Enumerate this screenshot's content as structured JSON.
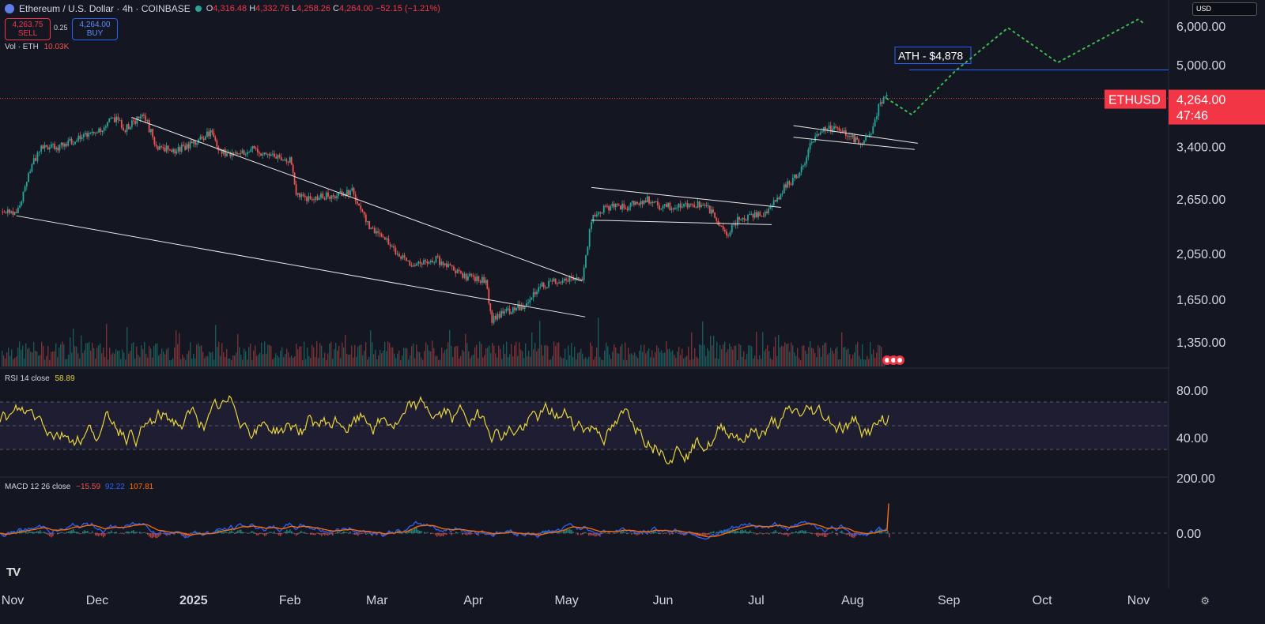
{
  "header": {
    "symbol": "Ethereum / U.S. Dollar · 4h · COINBASE",
    "open_label": "O",
    "open": "4,316.48",
    "high_label": "H",
    "high": "4,332.76",
    "low_label": "L",
    "low": "4,258.26",
    "close_label": "C",
    "close": "4,264.00",
    "change": "−52.15 (−1.21%)"
  },
  "trade": {
    "sell_price": "4,263.75",
    "sell_label": "SELL",
    "spread": "0.25",
    "buy_price": "4,264.00",
    "buy_label": "BUY"
  },
  "vol_label": "Vol · ETH",
  "vol_value": "10.03K",
  "rsi_label": "RSI 14 close",
  "rsi_value": "58.89",
  "macd_label": "MACD 12 26 close",
  "macd_values": [
    "−15.59",
    "92.22",
    "107.81"
  ],
  "currency": "USD",
  "ticker_tag": "ETHUSD",
  "last_price": "4,264.00",
  "countdown": "47:46",
  "ath_label": "ATH - $4,878",
  "colors": {
    "up": "#26a69a",
    "down": "#ef5350",
    "rsi": "#e7d53a",
    "macd": "#2962ff",
    "signal": "#ff6d00",
    "projection": "#3fb950",
    "price_tag": "#f23645"
  },
  "chart_data": {
    "type": "line",
    "title": "Ethereum / U.S. Dollar · 4h · COINBASE",
    "scale": "log",
    "x_ticks": [
      "Nov",
      "Dec",
      "2025",
      "Feb",
      "Mar",
      "Apr",
      "May",
      "Jun",
      "Jul",
      "Aug",
      "Sep",
      "Oct",
      "Nov"
    ],
    "y_ticks": [
      6000,
      5000,
      3400,
      2650,
      2050,
      1650,
      1350
    ],
    "rsi_ticks": [
      80,
      40
    ],
    "macd_ticks": [
      200,
      0
    ],
    "price_series": {
      "dates": [
        "2024-10-31",
        "2024-11-05",
        "2024-11-10",
        "2024-11-13",
        "2024-11-20",
        "2024-11-25",
        "2024-12-01",
        "2024-12-06",
        "2024-12-10",
        "2024-12-16",
        "2024-12-20",
        "2024-12-26",
        "2025-01-01",
        "2025-01-07",
        "2025-01-09",
        "2025-01-15",
        "2025-01-20",
        "2025-01-27",
        "2025-02-01",
        "2025-02-03",
        "2025-02-07",
        "2025-02-15",
        "2025-02-21",
        "2025-02-26",
        "2025-03-03",
        "2025-03-11",
        "2025-03-20",
        "2025-03-28",
        "2025-04-05",
        "2025-04-07",
        "2025-04-10",
        "2025-04-17",
        "2025-04-22",
        "2025-04-28",
        "2025-05-06",
        "2025-05-09",
        "2025-05-13",
        "2025-05-20",
        "2025-05-27",
        "2025-06-01",
        "2025-06-10",
        "2025-06-15",
        "2025-06-22",
        "2025-06-25",
        "2025-06-30",
        "2025-07-05",
        "2025-07-10",
        "2025-07-15",
        "2025-07-20",
        "2025-07-25",
        "2025-08-01",
        "2025-08-03",
        "2025-08-07",
        "2025-08-10",
        "2025-08-12"
      ],
      "close": [
        2500,
        2450,
        3150,
        3350,
        3400,
        3550,
        3650,
        3900,
        3700,
        3950,
        3400,
        3350,
        3450,
        3650,
        3300,
        3300,
        3350,
        3250,
        3200,
        2750,
        2650,
        2700,
        2750,
        2350,
        2200,
        1950,
        2000,
        1850,
        1800,
        1500,
        1550,
        1600,
        1750,
        1800,
        1820,
        2400,
        2550,
        2550,
        2650,
        2550,
        2600,
        2550,
        2250,
        2400,
        2450,
        2500,
        2800,
        3000,
        3600,
        3700,
        3550,
        3450,
        3650,
        4200,
        4264
      ]
    },
    "projection": {
      "dates": [
        "2025-08-12",
        "2025-08-20",
        "2025-09-03",
        "2025-09-20",
        "2025-10-06",
        "2025-11-01",
        "2025-11-03"
      ],
      "values": [
        4264,
        3950,
        4850,
        5950,
        5050,
        6200,
        6050
      ]
    },
    "ath": 4878,
    "last_price": 4264,
    "rsi_last": 58.89,
    "macd": {
      "histogram": -15.59,
      "macd": 92.22,
      "signal": 107.81
    }
  }
}
